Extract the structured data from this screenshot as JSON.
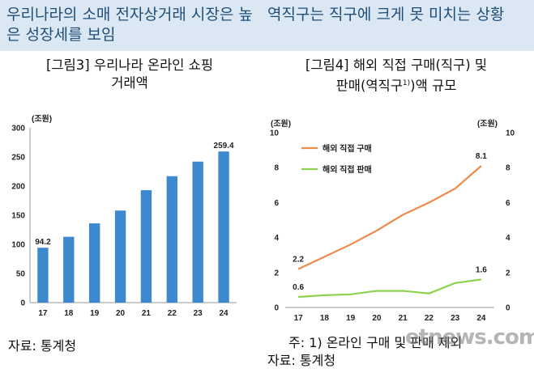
{
  "header": {
    "left": "우리나라의 소매 전자상거래 시장은 높은 성장세를 보임",
    "right": "역직구는 직구에 크게 못 미치는 상황"
  },
  "left_figure": {
    "title_line1": "[그림3] 우리나라 온라인 쇼핑",
    "title_line2": "거래액",
    "source": "자료: 통계청"
  },
  "right_figure": {
    "title_line1": "[그림4] 해외 직접 구매(직구) 및",
    "title_line2_pre": "판매(역직구",
    "title_line2_sup": "1)",
    "title_line2_post": ")액 규모",
    "note": "주: 1) 온라인 구매 및 판매 제외",
    "source": "자료: 통계청"
  },
  "watermark": "etnews.com",
  "colors": {
    "bar": "#3d89cf",
    "buy": "#ee8b4b",
    "sell": "#8ed34f",
    "header_bg": "#dbe8f3"
  },
  "chart_data": [
    {
      "type": "bar",
      "title": "[그림3] 우리나라 온라인 쇼핑 거래액",
      "unit": "(조원)",
      "categories": [
        "17",
        "18",
        "19",
        "20",
        "21",
        "22",
        "23",
        "24"
      ],
      "values": [
        94.2,
        113,
        136,
        158,
        193,
        217,
        242,
        259.4
      ],
      "data_labels": {
        "0": "94.2",
        "7": "259.4"
      },
      "yticks": [
        0,
        50,
        100,
        150,
        200,
        250,
        300
      ],
      "ylim": [
        0,
        300
      ]
    },
    {
      "type": "line",
      "title": "[그림4] 해외 직접 구매(직구) 및 판매(역직구)액 규모",
      "unit_left": "(조원)",
      "unit_right": "(조원)",
      "categories": [
        "17",
        "18",
        "19",
        "20",
        "21",
        "22",
        "23",
        "24"
      ],
      "series": [
        {
          "name": "해외 직접 구매",
          "color": "#ee8b4b",
          "values": [
            2.2,
            2.9,
            3.6,
            4.4,
            5.3,
            6.0,
            6.8,
            8.1
          ],
          "labels": {
            "0": "2.2",
            "7": "8.1"
          }
        },
        {
          "name": "해외 직접 판매",
          "color": "#8ed34f",
          "values": [
            0.6,
            0.7,
            0.75,
            0.95,
            0.95,
            0.8,
            1.4,
            1.6
          ],
          "labels": {
            "0": "0.6",
            "7": "1.6"
          }
        }
      ],
      "yticks_left": [
        0,
        2,
        4,
        6,
        8,
        10
      ],
      "yticks_right": [
        0,
        2,
        4,
        6,
        8,
        10
      ],
      "ylim": [
        0,
        10
      ]
    }
  ]
}
